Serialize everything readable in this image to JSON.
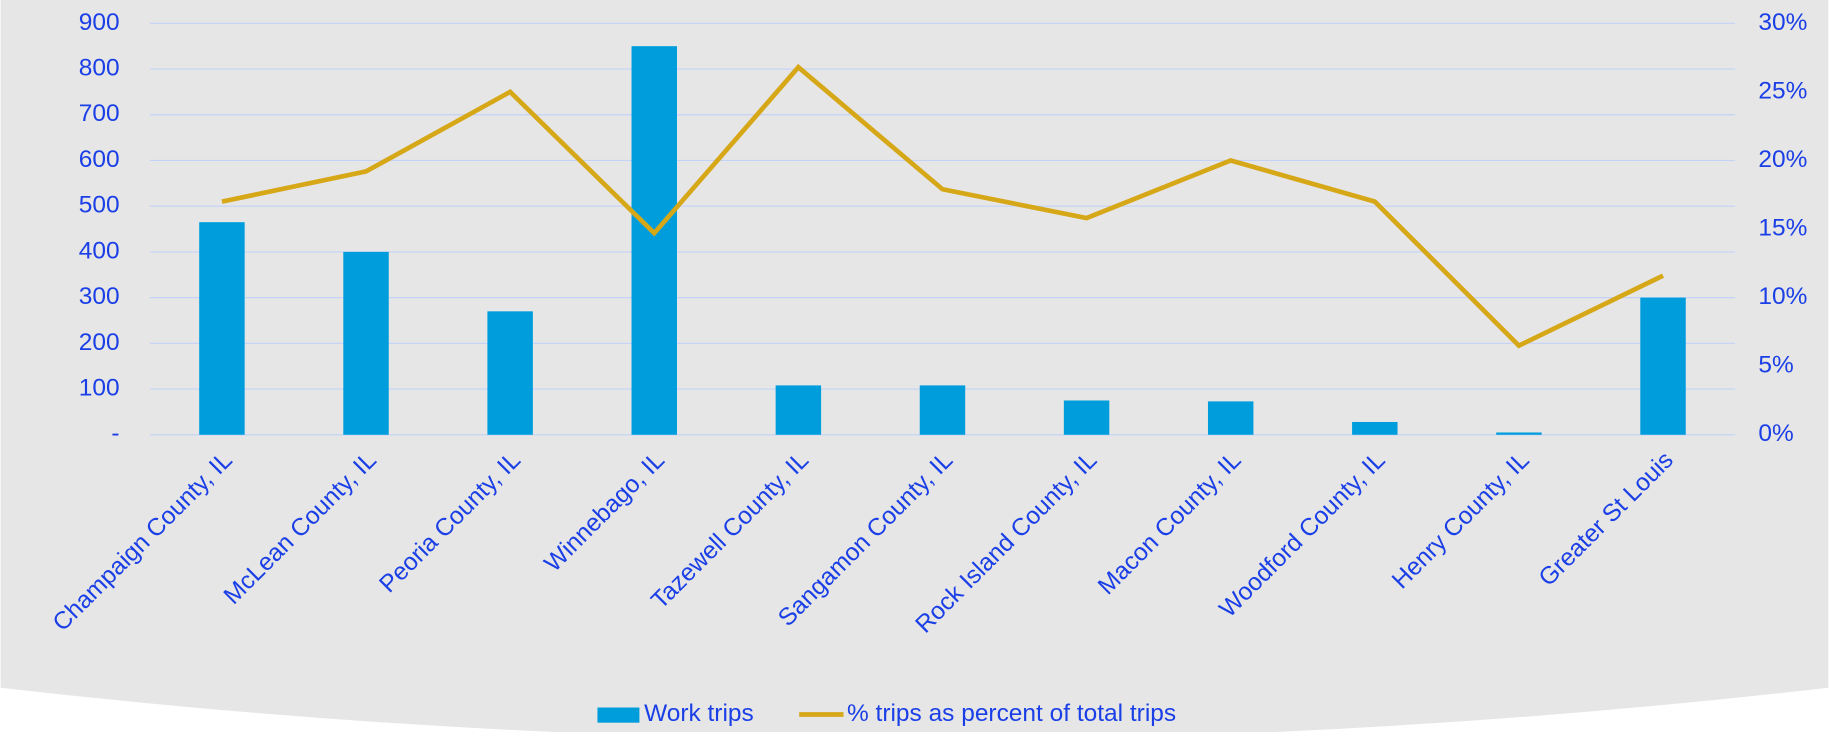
{
  "chart_data": {
    "type": "bar_line",
    "categories": [
      "Champaign County, IL",
      "McLean County, IL",
      "Peoria County, IL",
      "Winnebago, IL",
      "Tazewell County, IL",
      "Sangamon County, IL",
      "Rock Island County, IL",
      "Macon County, IL",
      "Woodford County, IL",
      "Henry County, IL",
      "Greater St Louis"
    ],
    "series": [
      {
        "name": "Work trips",
        "type": "bar",
        "color": "#009ddc",
        "values": [
          465,
          400,
          270,
          850,
          108,
          108,
          75,
          73,
          28,
          5,
          300
        ]
      },
      {
        "name": "% trips as percent of total trips",
        "type": "line",
        "axis": "y2",
        "color": "#d6a717",
        "values": [
          17.0,
          19.2,
          25.0,
          14.7,
          26.8,
          17.9,
          15.8,
          20.0,
          17.0,
          6.5,
          11.6
        ]
      }
    ],
    "ylim": [
      0,
      900
    ],
    "yticks": [
      {
        "value": 0,
        "label": "-"
      },
      100,
      200,
      300,
      400,
      500,
      600,
      700,
      800,
      900
    ],
    "y2lim": [
      0,
      30
    ],
    "y2ticks": [
      {
        "value": 0,
        "label": "0%"
      },
      {
        "value": 5,
        "label": "5%"
      },
      {
        "value": 10,
        "label": "10%"
      },
      {
        "value": 15,
        "label": "15%"
      },
      {
        "value": 20,
        "label": "20%"
      },
      {
        "value": 25,
        "label": "25%"
      },
      {
        "value": 30,
        "label": "30%"
      }
    ],
    "grid": true,
    "legend": "bottom"
  }
}
